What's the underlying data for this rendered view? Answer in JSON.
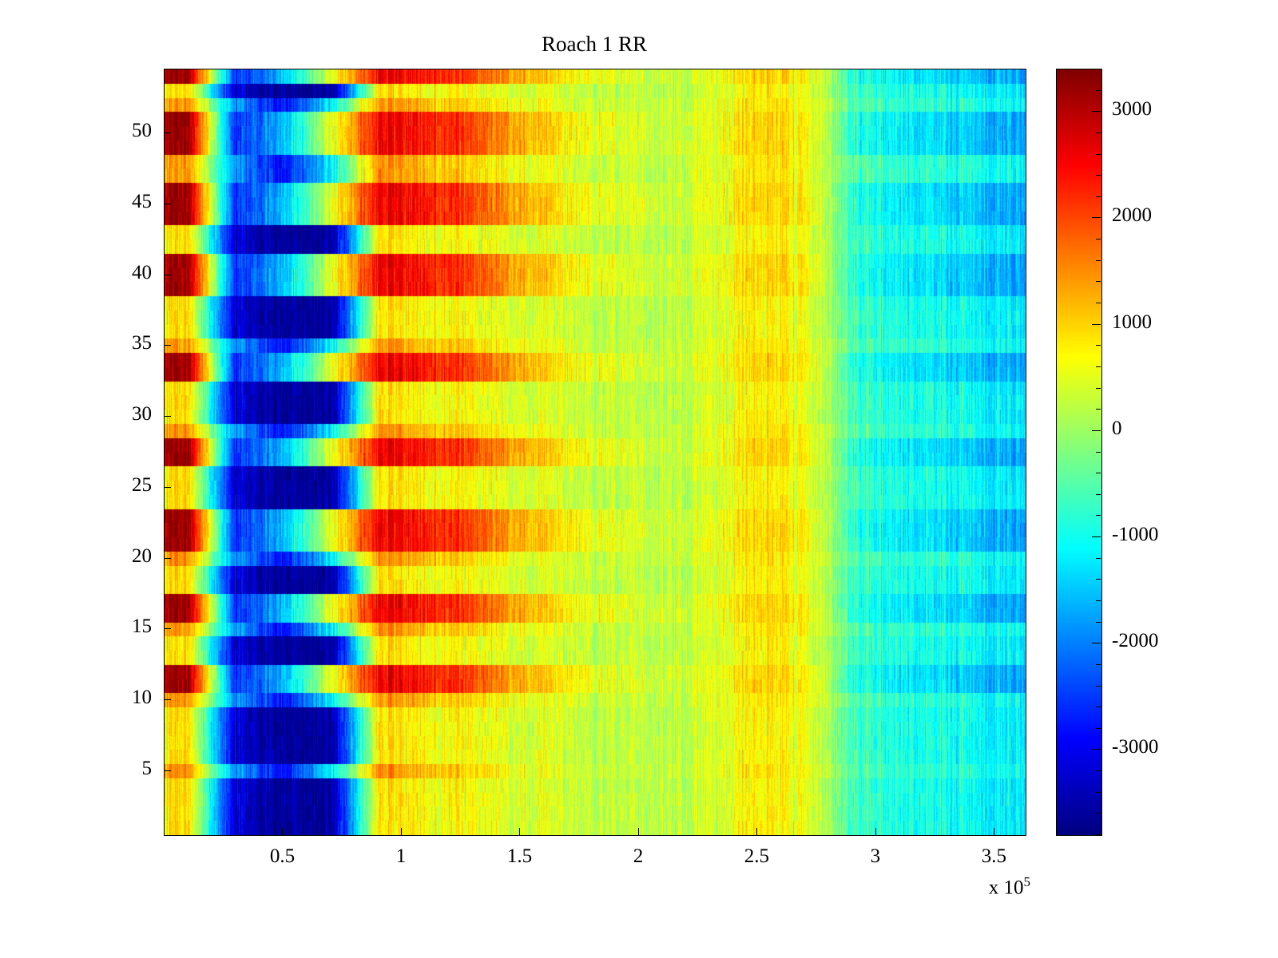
{
  "chart_data": {
    "type": "heatmap",
    "title": "Roach 1 RR",
    "x_range": [
      0,
      3.63
    ],
    "x_tick_values": [
      0.5,
      1,
      1.5,
      2,
      2.5,
      3,
      3.5
    ],
    "x_tick_labels": [
      "0.5",
      "1",
      "1.5",
      "2",
      "2.5",
      "3",
      "3.5"
    ],
    "x_scale": {
      "mantissa": "x 10",
      "exponent": "5"
    },
    "y_range": [
      0.5,
      54.5
    ],
    "y_tick_values": [
      5,
      10,
      15,
      20,
      25,
      30,
      35,
      40,
      45,
      50
    ],
    "y_tick_labels": [
      "5",
      "10",
      "15",
      "20",
      "25",
      "30",
      "35",
      "40",
      "45",
      "50"
    ],
    "colorbar": {
      "min": -3800,
      "max": 3400,
      "tick_values": [
        3000,
        2000,
        1000,
        0,
        -1000,
        -2000,
        -3000
      ],
      "tick_labels": [
        "3000",
        "2000",
        "1000",
        "0",
        "-1000",
        "-2000",
        "-3000"
      ],
      "minor_step": 200,
      "colormap": "jet"
    },
    "n_rows": 54,
    "n_cols": 18,
    "col_x_edges_1e5": [
      0,
      0.2,
      0.4,
      0.6,
      0.8,
      1.0,
      1.2,
      1.4,
      1.6,
      1.8,
      2.0,
      2.2,
      2.4,
      2.6,
      2.8,
      3.0,
      3.2,
      3.4,
      3.6
    ],
    "row_patterns": {
      "A": [
        900,
        -3200,
        -3600,
        -3600,
        900,
        700,
        600,
        450,
        350,
        280,
        220,
        300,
        850,
        450,
        -700,
        -900,
        -1000,
        -1200
      ],
      "B": [
        3200,
        -2600,
        -1500,
        500,
        2600,
        2400,
        1900,
        1300,
        750,
        500,
        320,
        450,
        1100,
        650,
        -900,
        -1200,
        -1400,
        -1700
      ],
      "C": [
        1400,
        -1800,
        -2800,
        -1200,
        1500,
        1200,
        900,
        620,
        420,
        320,
        260,
        380,
        950,
        550,
        -550,
        -750,
        -850,
        -1050
      ]
    },
    "row_assignment_bottom_to_top": "AAAACAAAACBBAACBBAACBBBAAABBCAAABBCAAABBBAABBBCCBBBCAB",
    "noise": {
      "column_streak_amp": 350,
      "row_jitter_amp": 260,
      "pixel_amp": 130
    }
  }
}
